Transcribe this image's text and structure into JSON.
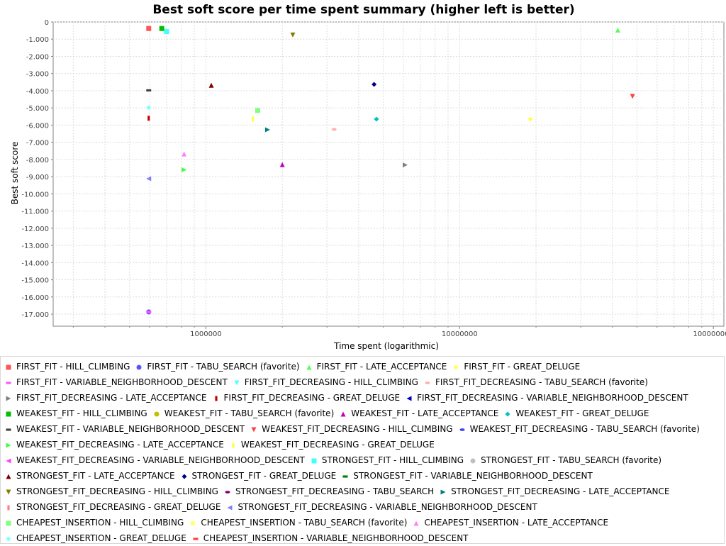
{
  "chart_data": {
    "type": "scatter",
    "title": "Best soft score per time spent summary (higher left is better)",
    "xlabel": "Time spent (logarithmic)",
    "ylabel": "Best soft score",
    "xscale": "log",
    "xlim": [
      250000,
      110000000
    ],
    "ylim": [
      -17700,
      0
    ],
    "x_ticks": [
      1000000,
      10000000,
      100000000
    ],
    "x_tick_labels": [
      "1000000",
      "10000000",
      "100000000"
    ],
    "y_ticks": [
      0,
      -1000,
      -2000,
      -3000,
      -4000,
      -5000,
      -6000,
      -7000,
      -8000,
      -9000,
      -10000,
      -11000,
      -12000,
      -13000,
      -14000,
      -15000,
      -16000,
      -17000
    ],
    "y_tick_labels": [
      "0",
      "-1.000",
      "-2.000",
      "-3.000",
      "-4.000",
      "-5.000",
      "-6.000",
      "-7.000",
      "-8.000",
      "-9.000",
      "-10.000",
      "-11.000",
      "-12.000",
      "-13.000",
      "-14.000",
      "-15.000",
      "-16.000",
      "-17.000"
    ],
    "grid": true,
    "legend_position": "bottom",
    "series": [
      {
        "name": "FIRST_FIT - HILL_CLIMBING",
        "color": "#ff5555",
        "shape": "square",
        "points": [
          [
            595000,
            -380
          ]
        ]
      },
      {
        "name": "FIRST_FIT - TABU_SEARCH (favorite)",
        "color": "#5555ff",
        "shape": "circle",
        "points": [
          [
            595000,
            -16870
          ]
        ]
      },
      {
        "name": "FIRST_FIT - LATE_ACCEPTANCE",
        "color": "#55ff55",
        "shape": "triangle-up",
        "points": [
          [
            42000000,
            -470
          ]
        ]
      },
      {
        "name": "FIRST_FIT - GREAT_DELUGE",
        "color": "#ffff55",
        "shape": "diamond",
        "points": [
          [
            19000000,
            -5650
          ]
        ]
      },
      {
        "name": "FIRST_FIT - VARIABLE_NEIGHBORHOOD_DESCENT",
        "color": "#ff55ff",
        "shape": "hbar",
        "points": [
          [
            595000,
            -16870
          ]
        ]
      },
      {
        "name": "FIRST_FIT_DECREASING - HILL_CLIMBING",
        "color": "#55ffff",
        "shape": "triangle-down",
        "points": []
      },
      {
        "name": "FIRST_FIT_DECREASING - TABU_SEARCH (favorite)",
        "color": "#ffafaf",
        "shape": "ellipse",
        "points": [
          [
            3200000,
            -6250
          ]
        ]
      },
      {
        "name": "FIRST_FIT_DECREASING - LATE_ACCEPTANCE",
        "color": "#808080",
        "shape": "triangle-right",
        "points": [
          [
            6100000,
            -8320
          ]
        ]
      },
      {
        "name": "FIRST_FIT_DECREASING - GREAT_DELUGE",
        "color": "#c00000",
        "shape": "vbar",
        "points": [
          [
            595000,
            -5600
          ]
        ]
      },
      {
        "name": "FIRST_FIT_DECREASING - VARIABLE_NEIGHBORHOOD_DESCENT",
        "color": "#0000c0",
        "shape": "triangle-left",
        "points": []
      },
      {
        "name": "WEAKEST_FIT - HILL_CLIMBING",
        "color": "#00c000",
        "shape": "square",
        "points": [
          [
            670000,
            -380
          ]
        ]
      },
      {
        "name": "WEAKEST_FIT - TABU_SEARCH (favorite)",
        "color": "#c0c000",
        "shape": "circle",
        "points": []
      },
      {
        "name": "WEAKEST_FIT - LATE_ACCEPTANCE",
        "color": "#c000c0",
        "shape": "triangle-up",
        "points": [
          [
            2000000,
            -8300
          ]
        ]
      },
      {
        "name": "WEAKEST_FIT - GREAT_DELUGE",
        "color": "#00c0c0",
        "shape": "diamond",
        "points": [
          [
            4700000,
            -5650
          ]
        ]
      },
      {
        "name": "WEAKEST_FIT - VARIABLE_NEIGHBORHOOD_DESCENT",
        "color": "#404040",
        "shape": "hbar",
        "points": [
          [
            595000,
            -3980
          ]
        ]
      },
      {
        "name": "WEAKEST_FIT_DECREASING - HILL_CLIMBING",
        "color": "#ff4040",
        "shape": "triangle-down",
        "points": [
          [
            48000000,
            -4330
          ]
        ]
      },
      {
        "name": "WEAKEST_FIT_DECREASING - TABU_SEARCH (favorite)",
        "color": "#4040ff",
        "shape": "ellipse",
        "points": []
      },
      {
        "name": "WEAKEST_FIT_DECREASING - LATE_ACCEPTANCE",
        "color": "#40ff40",
        "shape": "triangle-right",
        "points": [
          [
            820000,
            -8600
          ]
        ]
      },
      {
        "name": "WEAKEST_FIT_DECREASING - GREAT_DELUGE",
        "color": "#ffff40",
        "shape": "vbar",
        "points": [
          [
            1530000,
            -5650
          ]
        ]
      },
      {
        "name": "WEAKEST_FIT_DECREASING - VARIABLE_NEIGHBORHOOD_DESCENT",
        "color": "#ff40ff",
        "shape": "triangle-left",
        "points": []
      },
      {
        "name": "STRONGEST_FIT - HILL_CLIMBING",
        "color": "#40ffff",
        "shape": "square",
        "points": [
          [
            700000,
            -560
          ]
        ]
      },
      {
        "name": "STRONGEST_FIT - TABU_SEARCH (favorite)",
        "color": "#c0c0c0",
        "shape": "circle",
        "points": []
      },
      {
        "name": "STRONGEST_FIT - LATE_ACCEPTANCE",
        "color": "#800000",
        "shape": "triangle-up",
        "points": [
          [
            1050000,
            -3680
          ]
        ]
      },
      {
        "name": "STRONGEST_FIT - GREAT_DELUGE",
        "color": "#000080",
        "shape": "diamond",
        "points": [
          [
            4600000,
            -3630
          ]
        ]
      },
      {
        "name": "STRONGEST_FIT - VARIABLE_NEIGHBORHOOD_DESCENT",
        "color": "#008000",
        "shape": "hbar",
        "points": []
      },
      {
        "name": "STRONGEST_FIT_DECREASING - HILL_CLIMBING",
        "color": "#808000",
        "shape": "triangle-down",
        "points": [
          [
            2200000,
            -760
          ]
        ]
      },
      {
        "name": "STRONGEST_FIT_DECREASING - TABU_SEARCH",
        "color": "#800080",
        "shape": "ellipse",
        "points": []
      },
      {
        "name": "STRONGEST_FIT_DECREASING - LATE_ACCEPTANCE",
        "color": "#008080",
        "shape": "triangle-right",
        "points": [
          [
            1750000,
            -6270
          ]
        ]
      },
      {
        "name": "STRONGEST_FIT_DECREASING - GREAT_DELUGE",
        "color": "#ff8080",
        "shape": "vbar",
        "points": []
      },
      {
        "name": "STRONGEST_FIT_DECREASING - VARIABLE_NEIGHBORHOOD_DESCENT",
        "color": "#8080ff",
        "shape": "triangle-left",
        "points": [
          [
            595000,
            -9120
          ]
        ]
      },
      {
        "name": "CHEAPEST_INSERTION - HILL_CLIMBING",
        "color": "#80ff80",
        "shape": "square",
        "points": [
          [
            1600000,
            -5150
          ]
        ]
      },
      {
        "name": "CHEAPEST_INSERTION - TABU_SEARCH (favorite)",
        "color": "#ffff80",
        "shape": "circle",
        "points": []
      },
      {
        "name": "CHEAPEST_INSERTION - LATE_ACCEPTANCE",
        "color": "#ff80ff",
        "shape": "triangle-up",
        "points": [
          [
            820000,
            -7680
          ]
        ]
      },
      {
        "name": "CHEAPEST_INSERTION - GREAT_DELUGE",
        "color": "#80ffff",
        "shape": "diamond",
        "points": [
          [
            595000,
            -4980
          ]
        ]
      },
      {
        "name": "CHEAPEST_INSERTION - VARIABLE_NEIGHBORHOOD_DESCENT",
        "color": "#ff4040",
        "shape": "hbar",
        "points": []
      }
    ]
  }
}
